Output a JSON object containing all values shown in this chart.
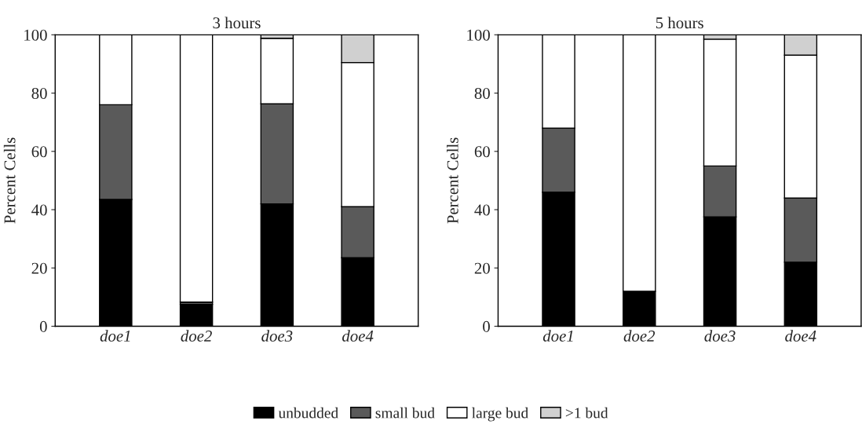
{
  "chart_data": [
    {
      "type": "bar",
      "title": "3 hours",
      "ylabel": "Percent Cells",
      "categories": [
        "doe1",
        "doe2",
        "doe3",
        "doe4"
      ],
      "stacked": true,
      "ylim": [
        0,
        100
      ],
      "yticks": [
        0,
        20,
        40,
        60,
        80,
        100
      ],
      "grid": false,
      "legend": "bottom",
      "series": [
        {
          "name": "unbudded",
          "color": "#000000",
          "values": [
            43.5,
            7.5,
            42,
            23.5
          ]
        },
        {
          "name": "small bud",
          "color": "#5a5a5a",
          "values": [
            32.5,
            0.8,
            34.3,
            17.5
          ]
        },
        {
          "name": "large bud",
          "color": "#ffffff",
          "values": [
            24,
            91.7,
            22.5,
            49.5
          ]
        },
        {
          "name": ">1 bud",
          "color": "#d0d0d0",
          "values": [
            null,
            null,
            1.2,
            9.5
          ]
        }
      ]
    },
    {
      "type": "bar",
      "title": "5 hours",
      "ylabel": "Percent Cells",
      "categories": [
        "doe1",
        "doe2",
        "doe3",
        "doe4"
      ],
      "stacked": true,
      "ylim": [
        0,
        100
      ],
      "yticks": [
        0,
        20,
        40,
        60,
        80,
        100
      ],
      "grid": false,
      "legend": "bottom",
      "series": [
        {
          "name": "unbudded",
          "color": "#000000",
          "values": [
            46,
            12,
            37.5,
            22
          ]
        },
        {
          "name": "small bud",
          "color": "#5a5a5a",
          "values": [
            22,
            0,
            17.5,
            22
          ]
        },
        {
          "name": "large bud",
          "color": "#ffffff",
          "values": [
            32,
            88,
            43.5,
            49
          ]
        },
        {
          "name": ">1 bud",
          "color": "#d0d0d0",
          "values": [
            null,
            null,
            1.5,
            7
          ]
        }
      ]
    }
  ]
}
